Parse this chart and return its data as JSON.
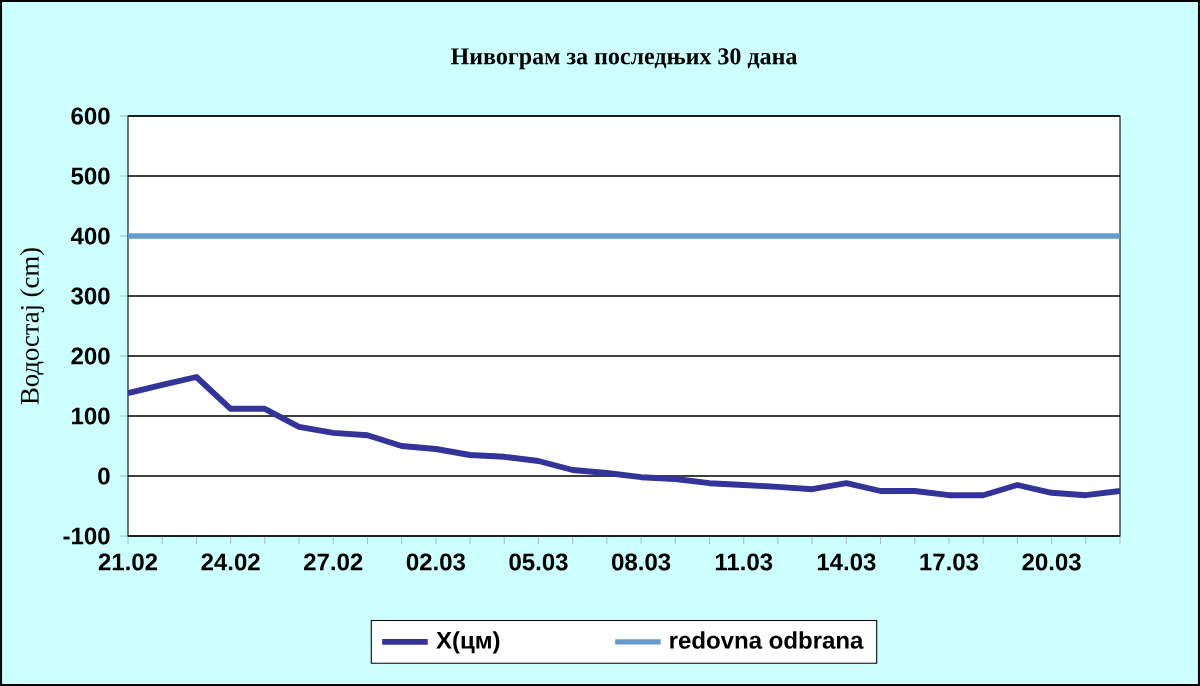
{
  "chart_data": {
    "type": "line",
    "title": "Нивограм за последњих 30 дана",
    "ylabel": "Водостај (cm)",
    "categories": [
      "21.02",
      null,
      null,
      "24.02",
      null,
      null,
      "27.02",
      null,
      null,
      "02.03",
      null,
      null,
      "05.03",
      null,
      null,
      "08.03",
      null,
      null,
      "11.03",
      null,
      null,
      "14.03",
      null,
      null,
      "17.03",
      null,
      null,
      "20.03",
      null,
      null
    ],
    "series": [
      {
        "name": "X(цм)",
        "color": "#333399",
        "values": [
          138,
          152,
          165,
          112,
          112,
          82,
          72,
          68,
          50,
          45,
          35,
          32,
          25,
          10,
          5,
          -2,
          -5,
          -12,
          -15,
          -18,
          -22,
          -12,
          -25,
          -25,
          -32,
          -32,
          -15,
          -28,
          -32,
          -25
        ]
      }
    ],
    "ref_lines": [
      {
        "axis": "y",
        "value": 400,
        "label": "redovna odbrana",
        "color": "#6699cc"
      }
    ],
    "ylim": [
      -100,
      600
    ],
    "yticks": [
      -100,
      0,
      100,
      200,
      300,
      400,
      500,
      600
    ],
    "grid": "y",
    "legend": "bottom"
  }
}
